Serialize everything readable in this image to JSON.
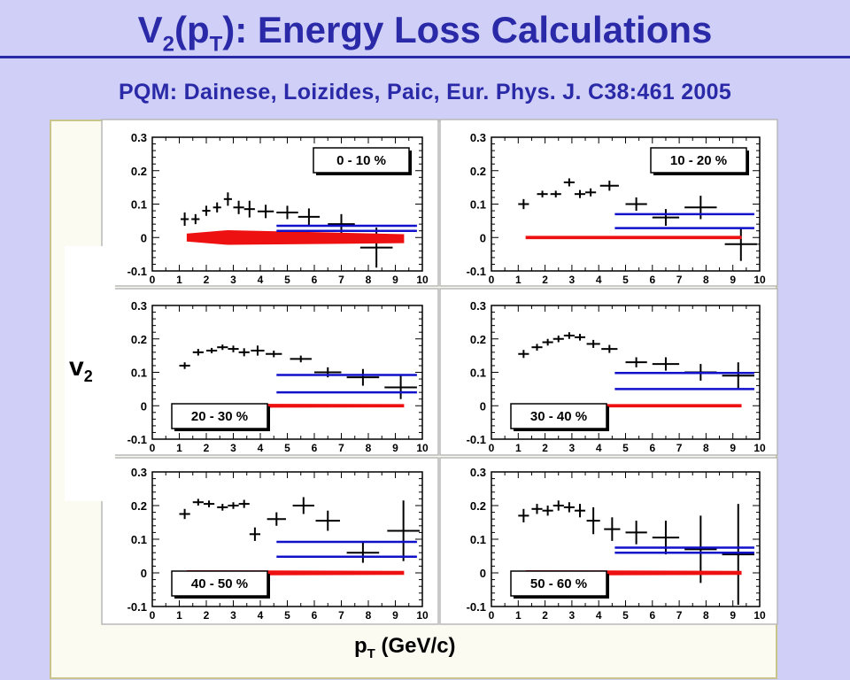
{
  "header": {
    "title_main": "V",
    "title_sub1": "2",
    "title_mid": "(p",
    "title_sub2": "T",
    "title_rest": "): Energy Loss Calculations",
    "subtitle": "PQM: Dainese, Loizides, Paic, Eur. Phys. J. C38:461 2005"
  },
  "axes": {
    "ylabel_main": "v",
    "ylabel_sub": "2",
    "xlabel_main": "p",
    "xlabel_sub": "T",
    "xlabel_rest": " (GeV/c)"
  },
  "colors": {
    "data": "#000000",
    "model_band": "#ee1111",
    "model_lines": "#1111cc",
    "title": "#2a2aa8"
  },
  "chart_data": [
    {
      "type": "scatter",
      "panel": "0 - 10 %",
      "xlim": [
        0,
        10
      ],
      "ylim": [
        -0.1,
        0.3
      ],
      "xticks": [
        "0",
        "1",
        "2",
        "3",
        "4",
        "5",
        "6",
        "7",
        "8",
        "9",
        "10"
      ],
      "yticks": [
        "-0.1",
        "0",
        "0.1",
        "0.2",
        "0.3"
      ],
      "legend_position": "top-right",
      "series": [
        {
          "name": "",
          "style": "points",
          "x": [
            1.2,
            1.6,
            2.0,
            2.4,
            2.8,
            3.2,
            3.6,
            4.2,
            5.0,
            5.8,
            7.0,
            8.3
          ],
          "y": [
            0.055,
            0.055,
            0.08,
            0.09,
            0.115,
            0.09,
            0.085,
            0.078,
            0.075,
            0.062,
            0.04,
            -0.03
          ],
          "yerr": [
            0.02,
            0.015,
            0.015,
            0.015,
            0.02,
            0.02,
            0.025,
            0.02,
            0.02,
            0.025,
            0.03,
            0.06
          ],
          "xerr": [
            0.15,
            0.15,
            0.15,
            0.15,
            0.15,
            0.2,
            0.2,
            0.3,
            0.4,
            0.4,
            0.5,
            0.6
          ]
        },
        {
          "name": "",
          "style": "band",
          "x": [
            1.3,
            2.8,
            9.3
          ],
          "ylo": [
            -0.01,
            -0.02,
            -0.015
          ],
          "yhi": [
            0.01,
            0.02,
            0.008
          ]
        },
        {
          "name": "",
          "style": "lines",
          "x": [
            4.6,
            9.8
          ],
          "y": [
            0.035,
            0.02
          ]
        }
      ]
    },
    {
      "type": "scatter",
      "panel": "10 - 20 %",
      "xlim": [
        0,
        10
      ],
      "ylim": [
        -0.1,
        0.3
      ],
      "xticks": [
        "0",
        "1",
        "2",
        "3",
        "4",
        "5",
        "6",
        "7",
        "8",
        "9",
        "10"
      ],
      "yticks": [
        "-0.1",
        "0",
        "0.1",
        "0.2",
        "0.3"
      ],
      "legend_position": "top-right",
      "series": [
        {
          "name": "",
          "style": "points",
          "x": [
            1.2,
            1.9,
            2.4,
            2.9,
            3.3,
            3.7,
            4.4,
            5.4,
            6.5,
            7.8,
            9.3
          ],
          "y": [
            0.1,
            0.13,
            0.13,
            0.165,
            0.13,
            0.135,
            0.155,
            0.1,
            0.06,
            0.09,
            -0.02
          ],
          "yerr": [
            0.015,
            0.01,
            0.01,
            0.012,
            0.012,
            0.012,
            0.015,
            0.02,
            0.025,
            0.035,
            0.05
          ],
          "xerr": [
            0.2,
            0.2,
            0.2,
            0.2,
            0.2,
            0.2,
            0.35,
            0.4,
            0.5,
            0.6,
            0.6
          ]
        },
        {
          "name": "",
          "style": "band",
          "x": [
            1.3,
            9.3
          ],
          "ylo": [
            -0.003,
            -0.003
          ],
          "yhi": [
            0.003,
            0.003
          ]
        },
        {
          "name": "",
          "style": "lines",
          "x": [
            4.6,
            9.8
          ],
          "y": [
            0.07,
            0.028
          ]
        }
      ]
    },
    {
      "type": "scatter",
      "panel": "20 - 30 %",
      "xlim": [
        0,
        10
      ],
      "ylim": [
        -0.1,
        0.3
      ],
      "xticks": [
        "0",
        "1",
        "2",
        "3",
        "4",
        "5",
        "6",
        "7",
        "8",
        "9",
        "10"
      ],
      "yticks": [
        "-0.1",
        "0",
        "0.1",
        "0.2",
        "0.3"
      ],
      "legend_position": "bottom-left",
      "series": [
        {
          "name": "",
          "style": "points",
          "x": [
            1.2,
            1.7,
            2.2,
            2.6,
            3.0,
            3.4,
            3.9,
            4.5,
            5.5,
            6.5,
            7.8,
            9.2
          ],
          "y": [
            0.12,
            0.16,
            0.165,
            0.175,
            0.17,
            0.16,
            0.165,
            0.155,
            0.14,
            0.1,
            0.085,
            0.055
          ],
          "yerr": [
            0.01,
            0.01,
            0.008,
            0.008,
            0.01,
            0.012,
            0.015,
            0.01,
            0.01,
            0.015,
            0.025,
            0.035
          ],
          "xerr": [
            0.2,
            0.2,
            0.2,
            0.2,
            0.2,
            0.2,
            0.25,
            0.3,
            0.4,
            0.5,
            0.6,
            0.6
          ]
        },
        {
          "name": "",
          "style": "band",
          "x": [
            1.3,
            9.3
          ],
          "ylo": [
            -0.004,
            -0.003
          ],
          "yhi": [
            0.004,
            0.003
          ]
        },
        {
          "name": "",
          "style": "lines",
          "x": [
            4.6,
            9.8
          ],
          "y": [
            0.092,
            0.04
          ]
        }
      ]
    },
    {
      "type": "scatter",
      "panel": "30 - 40 %",
      "xlim": [
        0,
        10
      ],
      "ylim": [
        -0.1,
        0.3
      ],
      "xticks": [
        "0",
        "1",
        "2",
        "3",
        "4",
        "5",
        "6",
        "7",
        "8",
        "9",
        "10"
      ],
      "yticks": [
        "-0.1",
        "0",
        "0.1",
        "0.2",
        "0.3"
      ],
      "legend_position": "bottom-left",
      "series": [
        {
          "name": "",
          "style": "points",
          "x": [
            1.2,
            1.7,
            2.1,
            2.5,
            2.9,
            3.3,
            3.8,
            4.4,
            5.4,
            6.5,
            7.8,
            9.2
          ],
          "y": [
            0.155,
            0.175,
            0.19,
            0.2,
            0.21,
            0.205,
            0.185,
            0.17,
            0.13,
            0.125,
            0.1,
            0.09
          ],
          "yerr": [
            0.012,
            0.01,
            0.01,
            0.01,
            0.01,
            0.01,
            0.012,
            0.012,
            0.015,
            0.02,
            0.025,
            0.04
          ],
          "xerr": [
            0.2,
            0.2,
            0.2,
            0.2,
            0.2,
            0.2,
            0.25,
            0.3,
            0.4,
            0.5,
            0.6,
            0.6
          ]
        },
        {
          "name": "",
          "style": "band",
          "x": [
            1.3,
            9.3
          ],
          "ylo": [
            -0.003,
            -0.003
          ],
          "yhi": [
            0.003,
            0.003
          ]
        },
        {
          "name": "",
          "style": "lines",
          "x": [
            4.6,
            9.8
          ],
          "y": [
            0.098,
            0.05
          ]
        }
      ]
    },
    {
      "type": "scatter",
      "panel": "40 - 50 %",
      "xlim": [
        0,
        10
      ],
      "ylim": [
        -0.1,
        0.3
      ],
      "xticks": [
        "0",
        "1",
        "2",
        "3",
        "4",
        "5",
        "6",
        "7",
        "8",
        "9",
        "10"
      ],
      "yticks": [
        "-0.1",
        "0",
        "0.1",
        "0.2",
        "0.3"
      ],
      "legend_position": "bottom-left",
      "series": [
        {
          "name": "",
          "style": "points",
          "x": [
            1.2,
            1.7,
            2.1,
            2.6,
            3.0,
            3.4,
            3.8,
            4.6,
            5.6,
            6.5,
            7.8,
            9.3
          ],
          "y": [
            0.175,
            0.21,
            0.205,
            0.195,
            0.2,
            0.205,
            0.115,
            0.16,
            0.2,
            0.155,
            0.06,
            0.125
          ],
          "yerr": [
            0.015,
            0.01,
            0.01,
            0.01,
            0.01,
            0.012,
            0.02,
            0.02,
            0.025,
            0.03,
            0.03,
            0.09
          ],
          "xerr": [
            0.2,
            0.2,
            0.2,
            0.2,
            0.2,
            0.2,
            0.2,
            0.35,
            0.4,
            0.45,
            0.6,
            0.6
          ]
        },
        {
          "name": "",
          "style": "band",
          "x": [
            1.3,
            9.3
          ],
          "ylo": [
            -0.006,
            -0.004
          ],
          "yhi": [
            0.006,
            0.004
          ]
        },
        {
          "name": "",
          "style": "lines",
          "x": [
            4.6,
            9.8
          ],
          "y": [
            0.092,
            0.048
          ]
        }
      ]
    },
    {
      "type": "scatter",
      "panel": "50 - 60 %",
      "xlim": [
        0,
        10
      ],
      "ylim": [
        -0.1,
        0.3
      ],
      "xticks": [
        "0",
        "1",
        "2",
        "3",
        "4",
        "5",
        "6",
        "7",
        "8",
        "9",
        "10"
      ],
      "yticks": [
        "-0.1",
        "0",
        "0.1",
        "0.2",
        "0.3"
      ],
      "legend_position": "bottom-left",
      "series": [
        {
          "name": "",
          "style": "points",
          "x": [
            1.2,
            1.7,
            2.1,
            2.5,
            2.9,
            3.3,
            3.8,
            4.5,
            5.4,
            6.5,
            7.8,
            9.2
          ],
          "y": [
            0.17,
            0.19,
            0.185,
            0.2,
            0.195,
            0.185,
            0.155,
            0.13,
            0.12,
            0.105,
            0.07,
            0.055
          ],
          "yerr": [
            0.02,
            0.015,
            0.015,
            0.015,
            0.015,
            0.02,
            0.04,
            0.035,
            0.035,
            0.05,
            0.1,
            0.15
          ],
          "xerr": [
            0.2,
            0.2,
            0.2,
            0.2,
            0.2,
            0.2,
            0.25,
            0.3,
            0.4,
            0.5,
            0.6,
            0.6
          ]
        },
        {
          "name": "",
          "style": "band",
          "x": [
            1.3,
            9.3
          ],
          "ylo": [
            -0.006,
            -0.004
          ],
          "yhi": [
            0.006,
            0.004
          ]
        },
        {
          "name": "",
          "style": "lines",
          "x": [
            4.6,
            9.8
          ],
          "y": [
            0.075,
            0.06
          ]
        }
      ]
    }
  ]
}
